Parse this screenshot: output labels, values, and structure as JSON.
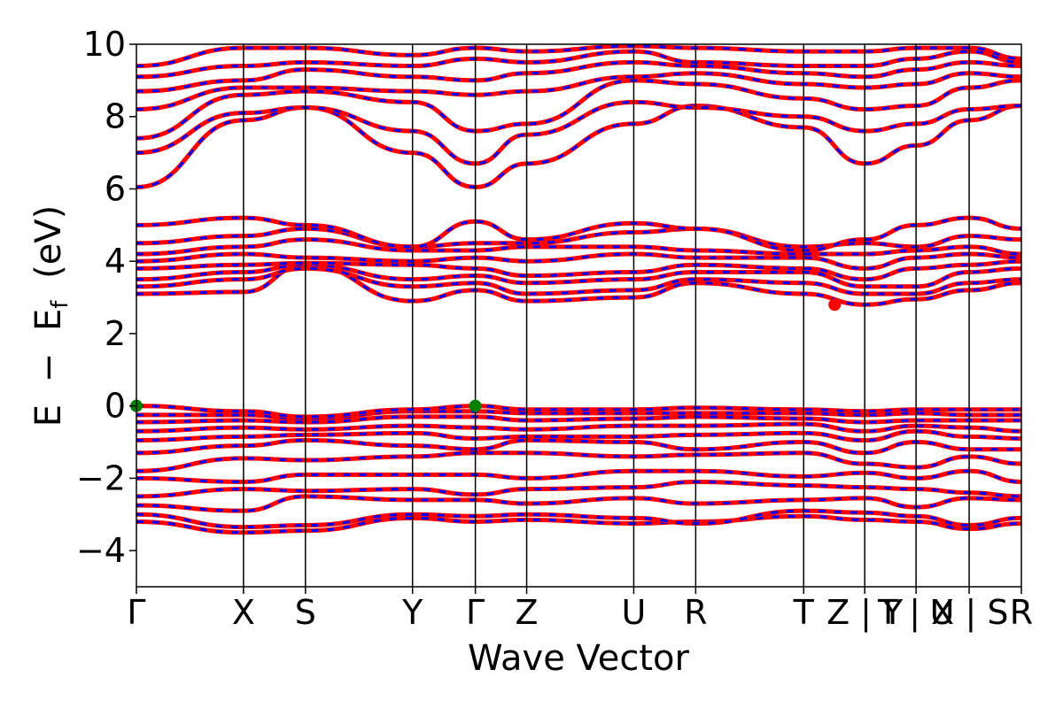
{
  "chart_data": {
    "type": "line",
    "xlabel": "Wave Vector",
    "ylabel": "E − E_f (eV)",
    "ylabel_parts": {
      "e": "E",
      "minus": "−",
      "ef": "E",
      "sub": "f",
      "unit": "(eV)"
    },
    "ylim": [
      -5,
      10
    ],
    "yticks": [
      -4,
      -2,
      0,
      2,
      4,
      6,
      8,
      10
    ],
    "ytick_labels": [
      "−4",
      "−2",
      "0",
      "2",
      "4",
      "6",
      "8",
      "10"
    ],
    "x_labels": [
      "Γ",
      "X",
      "S",
      "Y",
      "Γ",
      "Z",
      "U",
      "R",
      "T",
      "Z | Y",
      "T | X",
      "U | S",
      "R"
    ],
    "x_label_positions": [
      0,
      0.121,
      0.191,
      0.312,
      0.383,
      0.441,
      0.562,
      0.632,
      0.754,
      0.823,
      0.881,
      0.941,
      1.0
    ],
    "path_positions": [
      0,
      0.121,
      0.191,
      0.312,
      0.383,
      0.441,
      0.562,
      0.632,
      0.754,
      0.823,
      0.881,
      0.941,
      1.0
    ],
    "grid": false,
    "legend": "none",
    "colors": {
      "spin_up": "#ff0000",
      "spin_down": "#0000ff",
      "vbm_marker": "#008000",
      "cbm_marker": "#ff0000",
      "kpath_lines": "#000000"
    },
    "vbm": [
      {
        "x": 0,
        "y": 0.0
      },
      {
        "x": 0.383,
        "y": 0.0
      }
    ],
    "cbm": [
      {
        "x": 0.789,
        "y": 2.8
      }
    ],
    "bands": [
      {
        "y": [
          -3.2,
          -3.5,
          -3.45,
          -3.1,
          -3.2,
          -3.15,
          -3.25,
          -3.2,
          -3.05,
          -3.15,
          -3.2,
          -3.4,
          -3.25
        ]
      },
      {
        "y": [
          -3.0,
          -3.35,
          -3.3,
          -3.0,
          -3.05,
          -3.0,
          -3.1,
          -3.25,
          -2.9,
          -2.95,
          -3.05,
          -3.3,
          -3.1
        ]
      },
      {
        "y": [
          -2.75,
          -2.9,
          -2.5,
          -2.6,
          -2.6,
          -2.7,
          -2.55,
          -2.7,
          -2.6,
          -2.55,
          -2.8,
          -2.55,
          -2.6
        ]
      },
      {
        "y": [
          -2.5,
          -2.3,
          -2.35,
          -2.3,
          -2.45,
          -2.3,
          -2.25,
          -2.1,
          -2.2,
          -2.25,
          -2.3,
          -2.4,
          -2.5
        ]
      },
      {
        "y": [
          -2.0,
          -2.1,
          -1.9,
          -1.9,
          -1.9,
          -2.0,
          -1.8,
          -1.8,
          -1.95,
          -1.85,
          -2.0,
          -1.8,
          -2.1
        ]
      },
      {
        "y": [
          -1.8,
          -1.45,
          -1.5,
          -1.4,
          -1.3,
          -1.3,
          -1.4,
          -1.35,
          -1.3,
          -1.6,
          -1.7,
          -1.4,
          -1.6
        ]
      },
      {
        "y": [
          -1.3,
          -1.1,
          -0.95,
          -1.1,
          -1.2,
          -0.95,
          -1.0,
          -1.2,
          -1.0,
          -1.3,
          -1.0,
          -1.2,
          -1.2
        ]
      },
      {
        "y": [
          -0.95,
          -0.85,
          -0.8,
          -0.75,
          -0.9,
          -0.85,
          -0.85,
          -0.8,
          -0.75,
          -0.95,
          -0.7,
          -0.85,
          -0.9
        ]
      },
      {
        "y": [
          -0.7,
          -0.6,
          -0.65,
          -0.55,
          -0.6,
          -0.65,
          -0.55,
          -0.55,
          -0.5,
          -0.7,
          -0.55,
          -0.6,
          -0.7
        ]
      },
      {
        "y": [
          -0.45,
          -0.4,
          -0.45,
          -0.3,
          -0.3,
          -0.4,
          -0.35,
          -0.3,
          -0.35,
          -0.45,
          -0.4,
          -0.4,
          -0.4
        ]
      },
      {
        "y": [
          -0.25,
          -0.25,
          -0.35,
          -0.15,
          -0.15,
          -0.2,
          -0.2,
          -0.2,
          -0.2,
          -0.25,
          -0.2,
          -0.25,
          -0.25
        ]
      },
      {
        "y": [
          0.0,
          -0.15,
          -0.3,
          -0.1,
          0.0,
          -0.1,
          -0.1,
          -0.05,
          -0.1,
          -0.15,
          -0.1,
          -0.1,
          -0.1
        ]
      },
      {
        "y": [
          3.1,
          3.15,
          3.9,
          2.9,
          3.2,
          2.9,
          3.0,
          3.4,
          3.1,
          2.8,
          2.95,
          3.2,
          3.4
        ]
      },
      {
        "y": [
          3.3,
          3.5,
          3.8,
          3.3,
          3.4,
          3.1,
          3.2,
          3.5,
          3.4,
          3.1,
          3.1,
          3.4,
          3.5
        ]
      },
      {
        "y": [
          3.5,
          3.7,
          3.9,
          3.5,
          3.6,
          3.4,
          3.5,
          3.7,
          3.7,
          3.3,
          3.3,
          3.7,
          3.8
        ]
      },
      {
        "y": [
          3.8,
          3.9,
          3.95,
          3.9,
          3.8,
          3.6,
          3.7,
          3.9,
          3.8,
          3.5,
          3.8,
          3.9,
          4.0
        ]
      },
      {
        "y": [
          4.0,
          4.2,
          4.1,
          4.0,
          4.1,
          4.0,
          4.2,
          4.1,
          4.1,
          3.8,
          4.1,
          4.2,
          4.1
        ]
      },
      {
        "y": [
          4.2,
          4.4,
          4.6,
          4.3,
          4.3,
          4.4,
          4.4,
          4.3,
          4.2,
          4.2,
          4.3,
          4.4,
          4.2
        ]
      },
      {
        "y": [
          4.5,
          4.7,
          4.9,
          4.4,
          4.5,
          4.5,
          4.8,
          4.9,
          4.4,
          4.5,
          4.4,
          4.7,
          4.6
        ]
      },
      {
        "y": [
          5.0,
          5.2,
          5.0,
          4.4,
          5.1,
          4.6,
          5.05,
          4.9,
          4.3,
          4.6,
          5.0,
          5.2,
          4.9
        ]
      },
      {
        "y": [
          6.05,
          7.9,
          8.25,
          7.0,
          6.05,
          6.7,
          7.8,
          8.3,
          7.7,
          6.7,
          7.2,
          7.9,
          8.3
        ]
      },
      {
        "y": [
          7.0,
          8.1,
          8.25,
          7.6,
          6.7,
          7.5,
          8.4,
          8.25,
          8.0,
          7.6,
          7.8,
          8.2,
          8.3
        ]
      },
      {
        "y": [
          7.4,
          8.6,
          8.7,
          8.4,
          7.6,
          7.8,
          9.0,
          8.9,
          8.5,
          8.2,
          8.3,
          8.8,
          9.0
        ]
      },
      {
        "y": [
          8.2,
          8.8,
          8.8,
          8.7,
          8.6,
          8.7,
          9.1,
          9.2,
          8.9,
          8.8,
          8.9,
          9.2,
          9.1
        ]
      },
      {
        "y": [
          8.7,
          9.0,
          9.3,
          9.1,
          9.0,
          9.2,
          9.5,
          9.4,
          9.2,
          9.1,
          9.3,
          9.5,
          9.4
        ]
      },
      {
        "y": [
          9.1,
          9.4,
          9.5,
          9.4,
          9.6,
          9.5,
          9.8,
          9.5,
          9.4,
          9.4,
          9.6,
          9.8,
          9.5
        ]
      },
      {
        "y": [
          9.4,
          9.9,
          9.9,
          9.7,
          9.9,
          9.8,
          9.95,
          9.9,
          9.8,
          9.8,
          9.9,
          9.9,
          9.6
        ]
      }
    ]
  }
}
